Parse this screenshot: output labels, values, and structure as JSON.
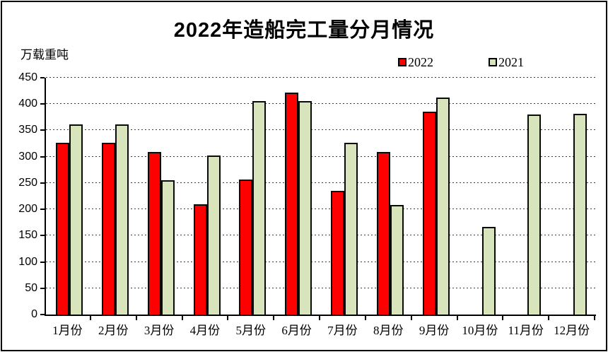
{
  "chart_data": {
    "type": "bar",
    "title": "2022年造船完工量分月情况",
    "ylabel_unit": "万载重吨",
    "categories": [
      "1月份",
      "2月份",
      "3月份",
      "4月份",
      "5月份",
      "6月份",
      "7月份",
      "8月份",
      "9月份",
      "10月份",
      "11月份",
      "12月份"
    ],
    "series": [
      {
        "name": "2022",
        "color": "#ff0000",
        "values": [
          327,
          327,
          309,
          210,
          256,
          422,
          235,
          309,
          386,
          null,
          null,
          null
        ]
      },
      {
        "name": "2021",
        "color": "#d8e4bc",
        "values": [
          361,
          361,
          255,
          302,
          406,
          406,
          326,
          208,
          413,
          166,
          380,
          382
        ]
      }
    ],
    "ylim": [
      0,
      450
    ],
    "ytick_step": 50,
    "grid": "dashed-horizontal",
    "legend_position": "top-right",
    "bar_border_color": "#0a0a0a",
    "axis_color": "#000000"
  }
}
